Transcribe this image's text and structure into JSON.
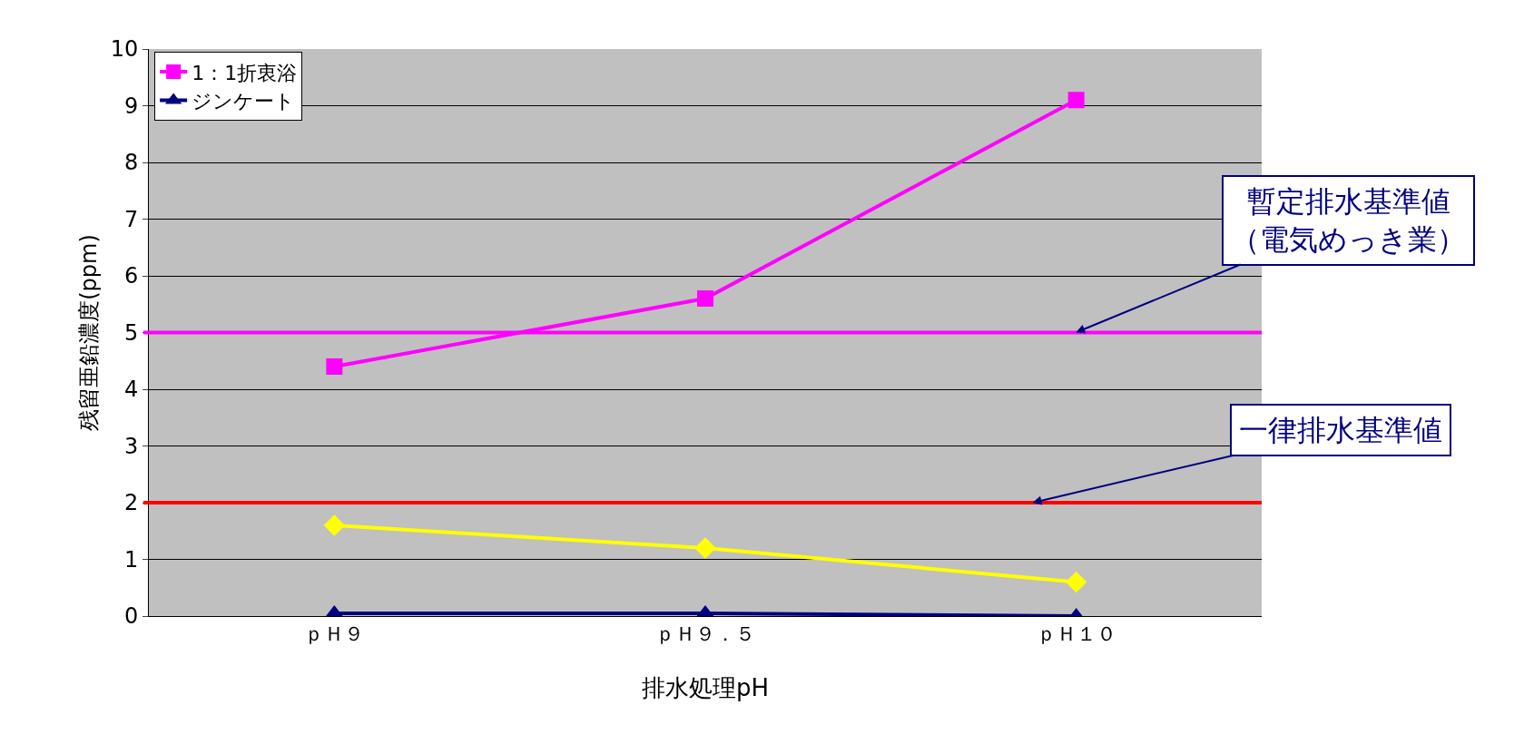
{
  "chart_data": {
    "type": "line",
    "xlabel": "排水処理pH",
    "ylabel": "残留亜鉛濃度(ppm)",
    "categories": [
      "ｐＨ９",
      "ｐＨ９．５",
      "ｐＨ１０"
    ],
    "series": [
      {
        "color": "#ffff00",
        "marker": "diamond",
        "values": [
          1.6,
          1.2,
          0.6
        ]
      },
      {
        "name": "1：1折衷浴",
        "color": "#ff00ff",
        "marker": "square",
        "values": [
          4.4,
          5.6,
          9.1
        ]
      },
      {
        "name": "ジンケート",
        "color": "#000080",
        "marker": "triangle",
        "values": [
          0.05,
          0.05,
          0
        ]
      }
    ],
    "ylim": [
      0,
      10
    ],
    "yticks": [
      0,
      1,
      2,
      3,
      4,
      5,
      6,
      7,
      8,
      9,
      10
    ],
    "grid": "y",
    "legend": "top left",
    "ref_lines": [
      {
        "axis": "y",
        "value": 5,
        "label": "暫定排水基準値（電気めっき業）",
        "color": "#ff00ff",
        "line_style": "solid"
      },
      {
        "axis": "y",
        "value": 2,
        "label": "一律排水基準値",
        "color": "#ff0000",
        "line_style": "solid"
      }
    ]
  }
}
